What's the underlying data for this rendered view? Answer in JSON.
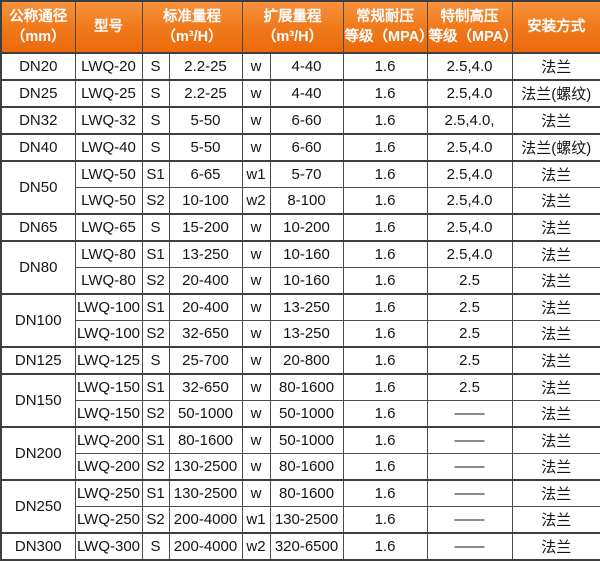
{
  "colors": {
    "header_orange_top": "#f8923f",
    "header_orange_bottom": "#ec6a0c",
    "header_text": "#ffffff",
    "body_text": "#141414",
    "grid_line": "#4c4c4c",
    "group_line": "#3e3e3e",
    "background": "#ffffff"
  },
  "table": {
    "headers": [
      {
        "id": "diameter",
        "colspan": 1,
        "lines": [
          "公称通径",
          "（mm）"
        ]
      },
      {
        "id": "model",
        "colspan": 1,
        "lines": [
          "型号"
        ]
      },
      {
        "id": "standard-range",
        "colspan": 2,
        "lines": [
          "标准量程",
          "（m³/H）"
        ]
      },
      {
        "id": "extended-range",
        "colspan": 2,
        "lines": [
          "扩展量程",
          "（m³/H）"
        ]
      },
      {
        "id": "normal-pressure",
        "colspan": 1,
        "lines": [
          "常规耐压",
          "等级（MPA）"
        ]
      },
      {
        "id": "high-pressure",
        "colspan": 1,
        "lines": [
          "特制高压",
          "等级（MPA）"
        ]
      },
      {
        "id": "installation",
        "colspan": 1,
        "lines": [
          "安装方式"
        ]
      }
    ],
    "groups": [
      {
        "diameter": "DN20",
        "rows": [
          [
            "LWQ-20",
            "S",
            "2.2-25",
            "w",
            "4-40",
            "1.6",
            "2.5,4.0",
            "法兰"
          ]
        ]
      },
      {
        "diameter": "DN25",
        "rows": [
          [
            "LWQ-25",
            "S",
            "2.2-25",
            "w",
            "4-40",
            "1.6",
            "2.5,4.0",
            "法兰(螺纹)"
          ]
        ]
      },
      {
        "diameter": "DN32",
        "rows": [
          [
            "LWQ-32",
            "S",
            "5-50",
            "w",
            "6-60",
            "1.6",
            "2.5,4.0,",
            "法兰"
          ]
        ]
      },
      {
        "diameter": "DN40",
        "rows": [
          [
            "LWQ-40",
            "S",
            "5-50",
            "w",
            "6-60",
            "1.6",
            "2.5,4.0",
            "法兰(螺纹)"
          ]
        ]
      },
      {
        "diameter": "DN50",
        "rows": [
          [
            "LWQ-50",
            "S1",
            "6-65",
            "w1",
            "5-70",
            "1.6",
            "2.5,4.0",
            "法兰"
          ],
          [
            "LWQ-50",
            "S2",
            "10-100",
            "w2",
            "8-100",
            "1.6",
            "2.5,4.0",
            "法兰"
          ]
        ]
      },
      {
        "diameter": "DN65",
        "rows": [
          [
            "LWQ-65",
            "S",
            "15-200",
            "w",
            "10-200",
            "1.6",
            "2.5,4.0",
            "法兰"
          ]
        ]
      },
      {
        "diameter": "DN80",
        "rows": [
          [
            "LWQ-80",
            "S1",
            "13-250",
            "w",
            "10-160",
            "1.6",
            "2.5,4.0",
            "法兰"
          ],
          [
            "LWQ-80",
            "S2",
            "20-400",
            "w",
            "10-160",
            "1.6",
            "2.5",
            "法兰"
          ]
        ]
      },
      {
        "diameter": "DN100",
        "rows": [
          [
            "LWQ-100",
            "S1",
            "20-400",
            "w",
            "13-250",
            "1.6",
            "2.5",
            "法兰"
          ],
          [
            "LWQ-100",
            "S2",
            "32-650",
            "w",
            "13-250",
            "1.6",
            "2.5",
            "法兰"
          ]
        ]
      },
      {
        "diameter": "DN125",
        "rows": [
          [
            "LWQ-125",
            "S",
            "25-700",
            "w",
            "20-800",
            "1.6",
            "2.5",
            "法兰"
          ]
        ]
      },
      {
        "diameter": "DN150",
        "rows": [
          [
            "LWQ-150",
            "S1",
            "32-650",
            "w",
            "80-1600",
            "1.6",
            "2.5",
            "法兰"
          ],
          [
            "LWQ-150",
            "S2",
            "50-1000",
            "w",
            "50-1000",
            "1.6",
            "——",
            "法兰"
          ]
        ]
      },
      {
        "diameter": "DN200",
        "rows": [
          [
            "LWQ-200",
            "S1",
            "80-1600",
            "w",
            "50-1000",
            "1.6",
            "——",
            "法兰"
          ],
          [
            "LWQ-200",
            "S2",
            "130-2500",
            "w",
            "80-1600",
            "1.6",
            "——",
            "法兰"
          ]
        ]
      },
      {
        "diameter": "DN250",
        "rows": [
          [
            "LWQ-250",
            "S1",
            "130-2500",
            "w",
            "80-1600",
            "1.6",
            "——",
            "法兰"
          ],
          [
            "LWQ-250",
            "S2",
            "200-4000",
            "w1",
            "130-2500",
            "1.6",
            "——",
            "法兰"
          ]
        ]
      },
      {
        "diameter": "DN300",
        "rows": [
          [
            "LWQ-300",
            "S",
            "200-4000",
            "w2",
            "320-6500",
            "1.6",
            "——",
            "法兰"
          ]
        ]
      }
    ]
  }
}
